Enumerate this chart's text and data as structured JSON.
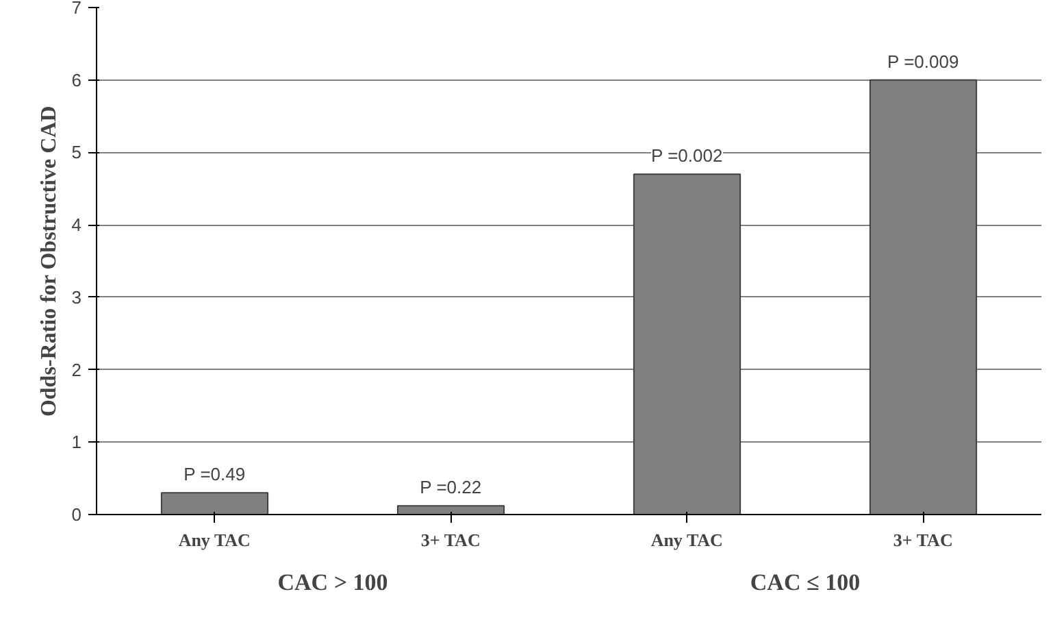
{
  "chart_data": {
    "type": "bar",
    "ylabel": "Odds-Ratio for Obstructive CAD",
    "categories": [
      "Any TAC",
      "3+ TAC",
      "Any TAC",
      "3+ TAC"
    ],
    "values": [
      0.3,
      0.12,
      4.7,
      6.0
    ],
    "color": "#808080",
    "ylim": [
      0,
      7
    ],
    "yticks": [
      0,
      1,
      2,
      3,
      4,
      5,
      6,
      7
    ],
    "grid": "y",
    "annotations": [
      "P =0.49",
      "P =0.22",
      "P =0.002",
      "P =0.009",
      "CAC > 100",
      "CAC ≤ 100"
    ]
  }
}
